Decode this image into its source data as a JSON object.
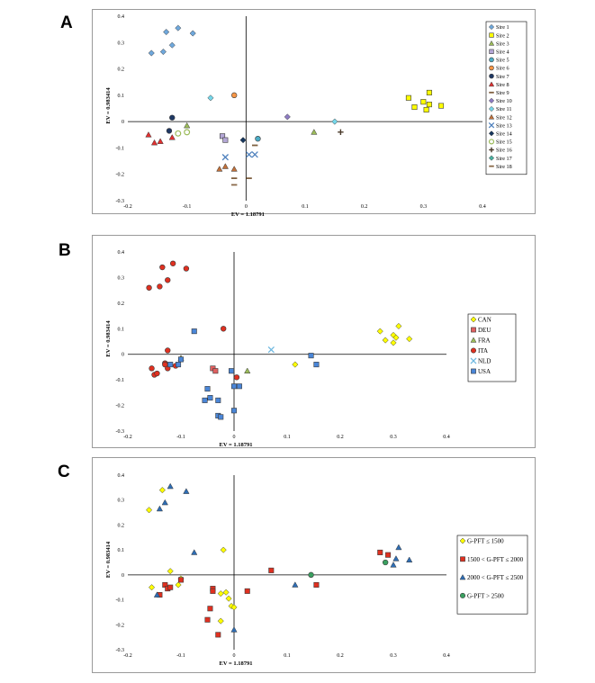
{
  "panels": [
    {
      "letter": "A"
    },
    {
      "letter": "B"
    },
    {
      "letter": "C"
    }
  ],
  "chart_data": [
    {
      "type": "scatter",
      "panel": "A",
      "xlabel": "EV = 1.18791",
      "ylabel": "EV = 0.983414",
      "xlim": [
        -0.2,
        0.4
      ],
      "ylim": [
        -0.3,
        0.4
      ],
      "xticks": [
        "-0.2",
        "-0.1",
        "0",
        "0.1",
        "0.2",
        "0.3",
        "0.4"
      ],
      "yticks": [
        "-0.3",
        "-0.2",
        "-0.1",
        "0",
        "0.1",
        "0.2",
        "0.3",
        "0.4"
      ],
      "legend_position": "right",
      "series": [
        {
          "name": "Sire 1",
          "marker": "diamond",
          "color": "#6fa8dc",
          "points": [
            [
              -0.16,
              0.26
            ],
            [
              -0.14,
              0.265
            ],
            [
              -0.135,
              0.34
            ],
            [
              -0.125,
              0.29
            ],
            [
              -0.115,
              0.355
            ],
            [
              -0.09,
              0.335
            ]
          ]
        },
        {
          "name": "Sire 2",
          "marker": "square",
          "color": "#ffff00",
          "points": [
            [
              0.275,
              0.09
            ],
            [
              0.285,
              0.055
            ],
            [
              0.3,
              0.075
            ],
            [
              0.31,
              0.11
            ],
            [
              0.31,
              0.065
            ],
            [
              0.305,
              0.045
            ],
            [
              0.33,
              0.06
            ]
          ]
        },
        {
          "name": "Sire 3",
          "marker": "triangle",
          "color": "#9bbb59",
          "points": [
            [
              -0.1,
              -0.015
            ],
            [
              0.115,
              -0.04
            ]
          ]
        },
        {
          "name": "Sire 4",
          "marker": "square",
          "color": "#b4a7d6",
          "points": [
            [
              -0.04,
              -0.055
            ],
            [
              -0.035,
              -0.07
            ]
          ]
        },
        {
          "name": "Sire 5",
          "marker": "circle",
          "color": "#4bacc6",
          "points": [
            [
              0.02,
              -0.065
            ]
          ]
        },
        {
          "name": "Sire 6",
          "marker": "circle",
          "color": "#f79646",
          "points": [
            [
              -0.02,
              0.1
            ]
          ]
        },
        {
          "name": "Sire 7",
          "marker": "circle",
          "color": "#1f3864",
          "points": [
            [
              -0.125,
              0.015
            ],
            [
              -0.13,
              -0.035
            ]
          ]
        },
        {
          "name": "Sire 8",
          "marker": "triangle",
          "color": "#e03030",
          "points": [
            [
              -0.165,
              -0.05
            ],
            [
              -0.155,
              -0.08
            ],
            [
              -0.145,
              -0.075
            ],
            [
              -0.125,
              -0.06
            ]
          ]
        },
        {
          "name": "Sire 9",
          "marker": "dash",
          "color": "#7f6040",
          "points": [
            [
              -0.02,
              -0.215
            ],
            [
              0.005,
              -0.215
            ],
            [
              0.015,
              -0.09
            ]
          ]
        },
        {
          "name": "Sire 10",
          "marker": "diamond",
          "color": "#8e7cc3",
          "points": [
            [
              0.07,
              0.018
            ]
          ]
        },
        {
          "name": "Sire 11",
          "marker": "diamond",
          "color": "#76d7ea",
          "points": [
            [
              -0.06,
              0.09
            ],
            [
              0.15,
              0.0
            ]
          ]
        },
        {
          "name": "Sire 12",
          "marker": "triangle",
          "color": "#c0703a",
          "points": [
            [
              -0.045,
              -0.18
            ],
            [
              -0.035,
              -0.17
            ],
            [
              -0.02,
              -0.18
            ]
          ]
        },
        {
          "name": "Sire 13",
          "marker": "x",
          "color": "#4f81bd",
          "points": [
            [
              -0.035,
              -0.135
            ],
            [
              0.005,
              -0.125
            ],
            [
              0.015,
              -0.125
            ]
          ]
        },
        {
          "name": "Sire 14",
          "marker": "diamond",
          "color": "#17375e",
          "points": [
            [
              -0.005,
              -0.07
            ]
          ]
        },
        {
          "name": "Sire 15",
          "marker": "circle-open",
          "color": "#9bbb59",
          "points": [
            [
              -0.115,
              -0.045
            ],
            [
              -0.1,
              -0.04
            ]
          ]
        },
        {
          "name": "Sire 16",
          "marker": "plus",
          "color": "#4a3a2a",
          "points": [
            [
              0.16,
              -0.04
            ]
          ]
        },
        {
          "name": "Sire 17",
          "marker": "diamond",
          "color": "#4ab0a0",
          "points": []
        },
        {
          "name": "Sire 18",
          "marker": "dash",
          "color": "#8a6a4a",
          "points": [
            [
              -0.02,
              -0.24
            ]
          ]
        }
      ]
    },
    {
      "type": "scatter",
      "panel": "B",
      "xlabel": "EV = 1.18791",
      "ylabel": "EV = 0.983414",
      "xlim": [
        -0.2,
        0.4
      ],
      "ylim": [
        -0.3,
        0.4
      ],
      "xticks": [
        "-0.2",
        "-0.1",
        "0",
        "0.1",
        "0.2",
        "0.3",
        "0.4"
      ],
      "yticks": [
        "-0.3",
        "-0.2",
        "-0.1",
        "0",
        "0.1",
        "0.2",
        "0.3",
        "0.4"
      ],
      "legend_position": "right",
      "series": [
        {
          "name": "CAN",
          "marker": "diamond",
          "color": "#ffff00",
          "points": [
            [
              0.275,
              0.09
            ],
            [
              0.285,
              0.055
            ],
            [
              0.3,
              0.075
            ],
            [
              0.31,
              0.11
            ],
            [
              0.305,
              0.065
            ],
            [
              0.3,
              0.045
            ],
            [
              0.33,
              0.06
            ],
            [
              0.115,
              -0.04
            ]
          ]
        },
        {
          "name": "DEU",
          "marker": "square",
          "color": "#e06060",
          "points": [
            [
              -0.04,
              -0.055
            ],
            [
              -0.035,
              -0.065
            ]
          ]
        },
        {
          "name": "FRA",
          "marker": "triangle",
          "color": "#9bbb59",
          "points": [
            [
              -0.1,
              -0.015
            ],
            [
              0.025,
              -0.065
            ]
          ]
        },
        {
          "name": "ITA",
          "marker": "circle",
          "color": "#e03020",
          "points": [
            [
              -0.16,
              0.26
            ],
            [
              -0.14,
              0.265
            ],
            [
              -0.135,
              0.34
            ],
            [
              -0.125,
              0.29
            ],
            [
              -0.115,
              0.355
            ],
            [
              -0.09,
              0.335
            ],
            [
              -0.02,
              0.1
            ],
            [
              -0.125,
              0.015
            ],
            [
              -0.13,
              -0.035
            ],
            [
              -0.155,
              -0.055
            ],
            [
              -0.15,
              -0.08
            ],
            [
              -0.145,
              -0.075
            ],
            [
              -0.125,
              -0.055
            ],
            [
              -0.13,
              -0.04
            ],
            [
              -0.11,
              -0.045
            ],
            [
              0.005,
              -0.09
            ]
          ]
        },
        {
          "name": "NLD",
          "marker": "x",
          "color": "#6fb8e0",
          "points": [
            [
              0.07,
              0.018
            ]
          ]
        },
        {
          "name": "USA",
          "marker": "square",
          "color": "#4a86d8",
          "points": [
            [
              -0.075,
              0.09
            ],
            [
              -0.12,
              -0.04
            ],
            [
              -0.105,
              -0.04
            ],
            [
              -0.1,
              -0.02
            ],
            [
              -0.05,
              -0.135
            ],
            [
              -0.055,
              -0.18
            ],
            [
              -0.045,
              -0.17
            ],
            [
              -0.03,
              -0.18
            ],
            [
              -0.03,
              -0.24
            ],
            [
              -0.025,
              -0.245
            ],
            [
              0.0,
              -0.125
            ],
            [
              0.01,
              -0.125
            ],
            [
              -0.005,
              -0.065
            ],
            [
              0.0,
              -0.22
            ],
            [
              0.145,
              -0.005
            ],
            [
              0.155,
              -0.04
            ]
          ]
        }
      ]
    },
    {
      "type": "scatter",
      "panel": "C",
      "xlabel": "EV = 1.18791",
      "ylabel": "EV = 0.983414",
      "xlim": [
        -0.2,
        0.4
      ],
      "ylim": [
        -0.3,
        0.4
      ],
      "xticks": [
        "-0.2",
        "-0.1",
        "0",
        "0.1",
        "0.2",
        "0.3",
        "0.4"
      ],
      "yticks": [
        "-0.3",
        "-0.2",
        "-0.1",
        "0",
        "0.1",
        "0.2",
        "0.3",
        "0.4"
      ],
      "legend_position": "right",
      "series": [
        {
          "name": "G-PFT ≤ 1500",
          "marker": "diamond",
          "color": "#ffff00",
          "points": [
            [
              -0.16,
              0.26
            ],
            [
              -0.135,
              0.34
            ],
            [
              -0.12,
              0.015
            ],
            [
              -0.155,
              -0.05
            ],
            [
              -0.105,
              -0.04
            ],
            [
              -0.02,
              0.1
            ],
            [
              -0.025,
              -0.075
            ],
            [
              -0.01,
              -0.095
            ],
            [
              -0.005,
              -0.125
            ],
            [
              0.0,
              -0.13
            ],
            [
              -0.025,
              -0.185
            ],
            [
              -0.015,
              -0.07
            ],
            [
              -0.1,
              -0.015
            ]
          ]
        },
        {
          "name": "1500 < G-PFT ≤ 2000",
          "marker": "square",
          "color": "#e03020",
          "points": [
            [
              -0.13,
              -0.04
            ],
            [
              -0.125,
              -0.055
            ],
            [
              -0.14,
              -0.08
            ],
            [
              -0.12,
              -0.05
            ],
            [
              -0.1,
              -0.02
            ],
            [
              -0.04,
              -0.055
            ],
            [
              -0.04,
              -0.065
            ],
            [
              -0.045,
              -0.135
            ],
            [
              -0.05,
              -0.18
            ],
            [
              -0.03,
              -0.24
            ],
            [
              0.025,
              -0.065
            ],
            [
              0.07,
              0.018
            ],
            [
              0.155,
              -0.04
            ],
            [
              0.275,
              0.09
            ],
            [
              0.29,
              0.08
            ]
          ]
        },
        {
          "name": "2000 < G-PFT ≤ 2500",
          "marker": "triangle",
          "color": "#2e6db4",
          "points": [
            [
              -0.14,
              0.265
            ],
            [
              -0.13,
              0.29
            ],
            [
              -0.12,
              0.355
            ],
            [
              -0.09,
              0.335
            ],
            [
              -0.075,
              0.09
            ],
            [
              -0.145,
              -0.08
            ],
            [
              0.115,
              -0.04
            ],
            [
              0.31,
              0.11
            ],
            [
              0.305,
              0.065
            ],
            [
              0.3,
              0.04
            ],
            [
              0.33,
              0.06
            ],
            [
              0.0,
              -0.22
            ]
          ]
        },
        {
          "name": "G-PFT > 2500",
          "marker": "circle",
          "color": "#3aa060",
          "points": [
            [
              0.145,
              0.0
            ],
            [
              0.285,
              0.05
            ]
          ]
        }
      ]
    }
  ]
}
